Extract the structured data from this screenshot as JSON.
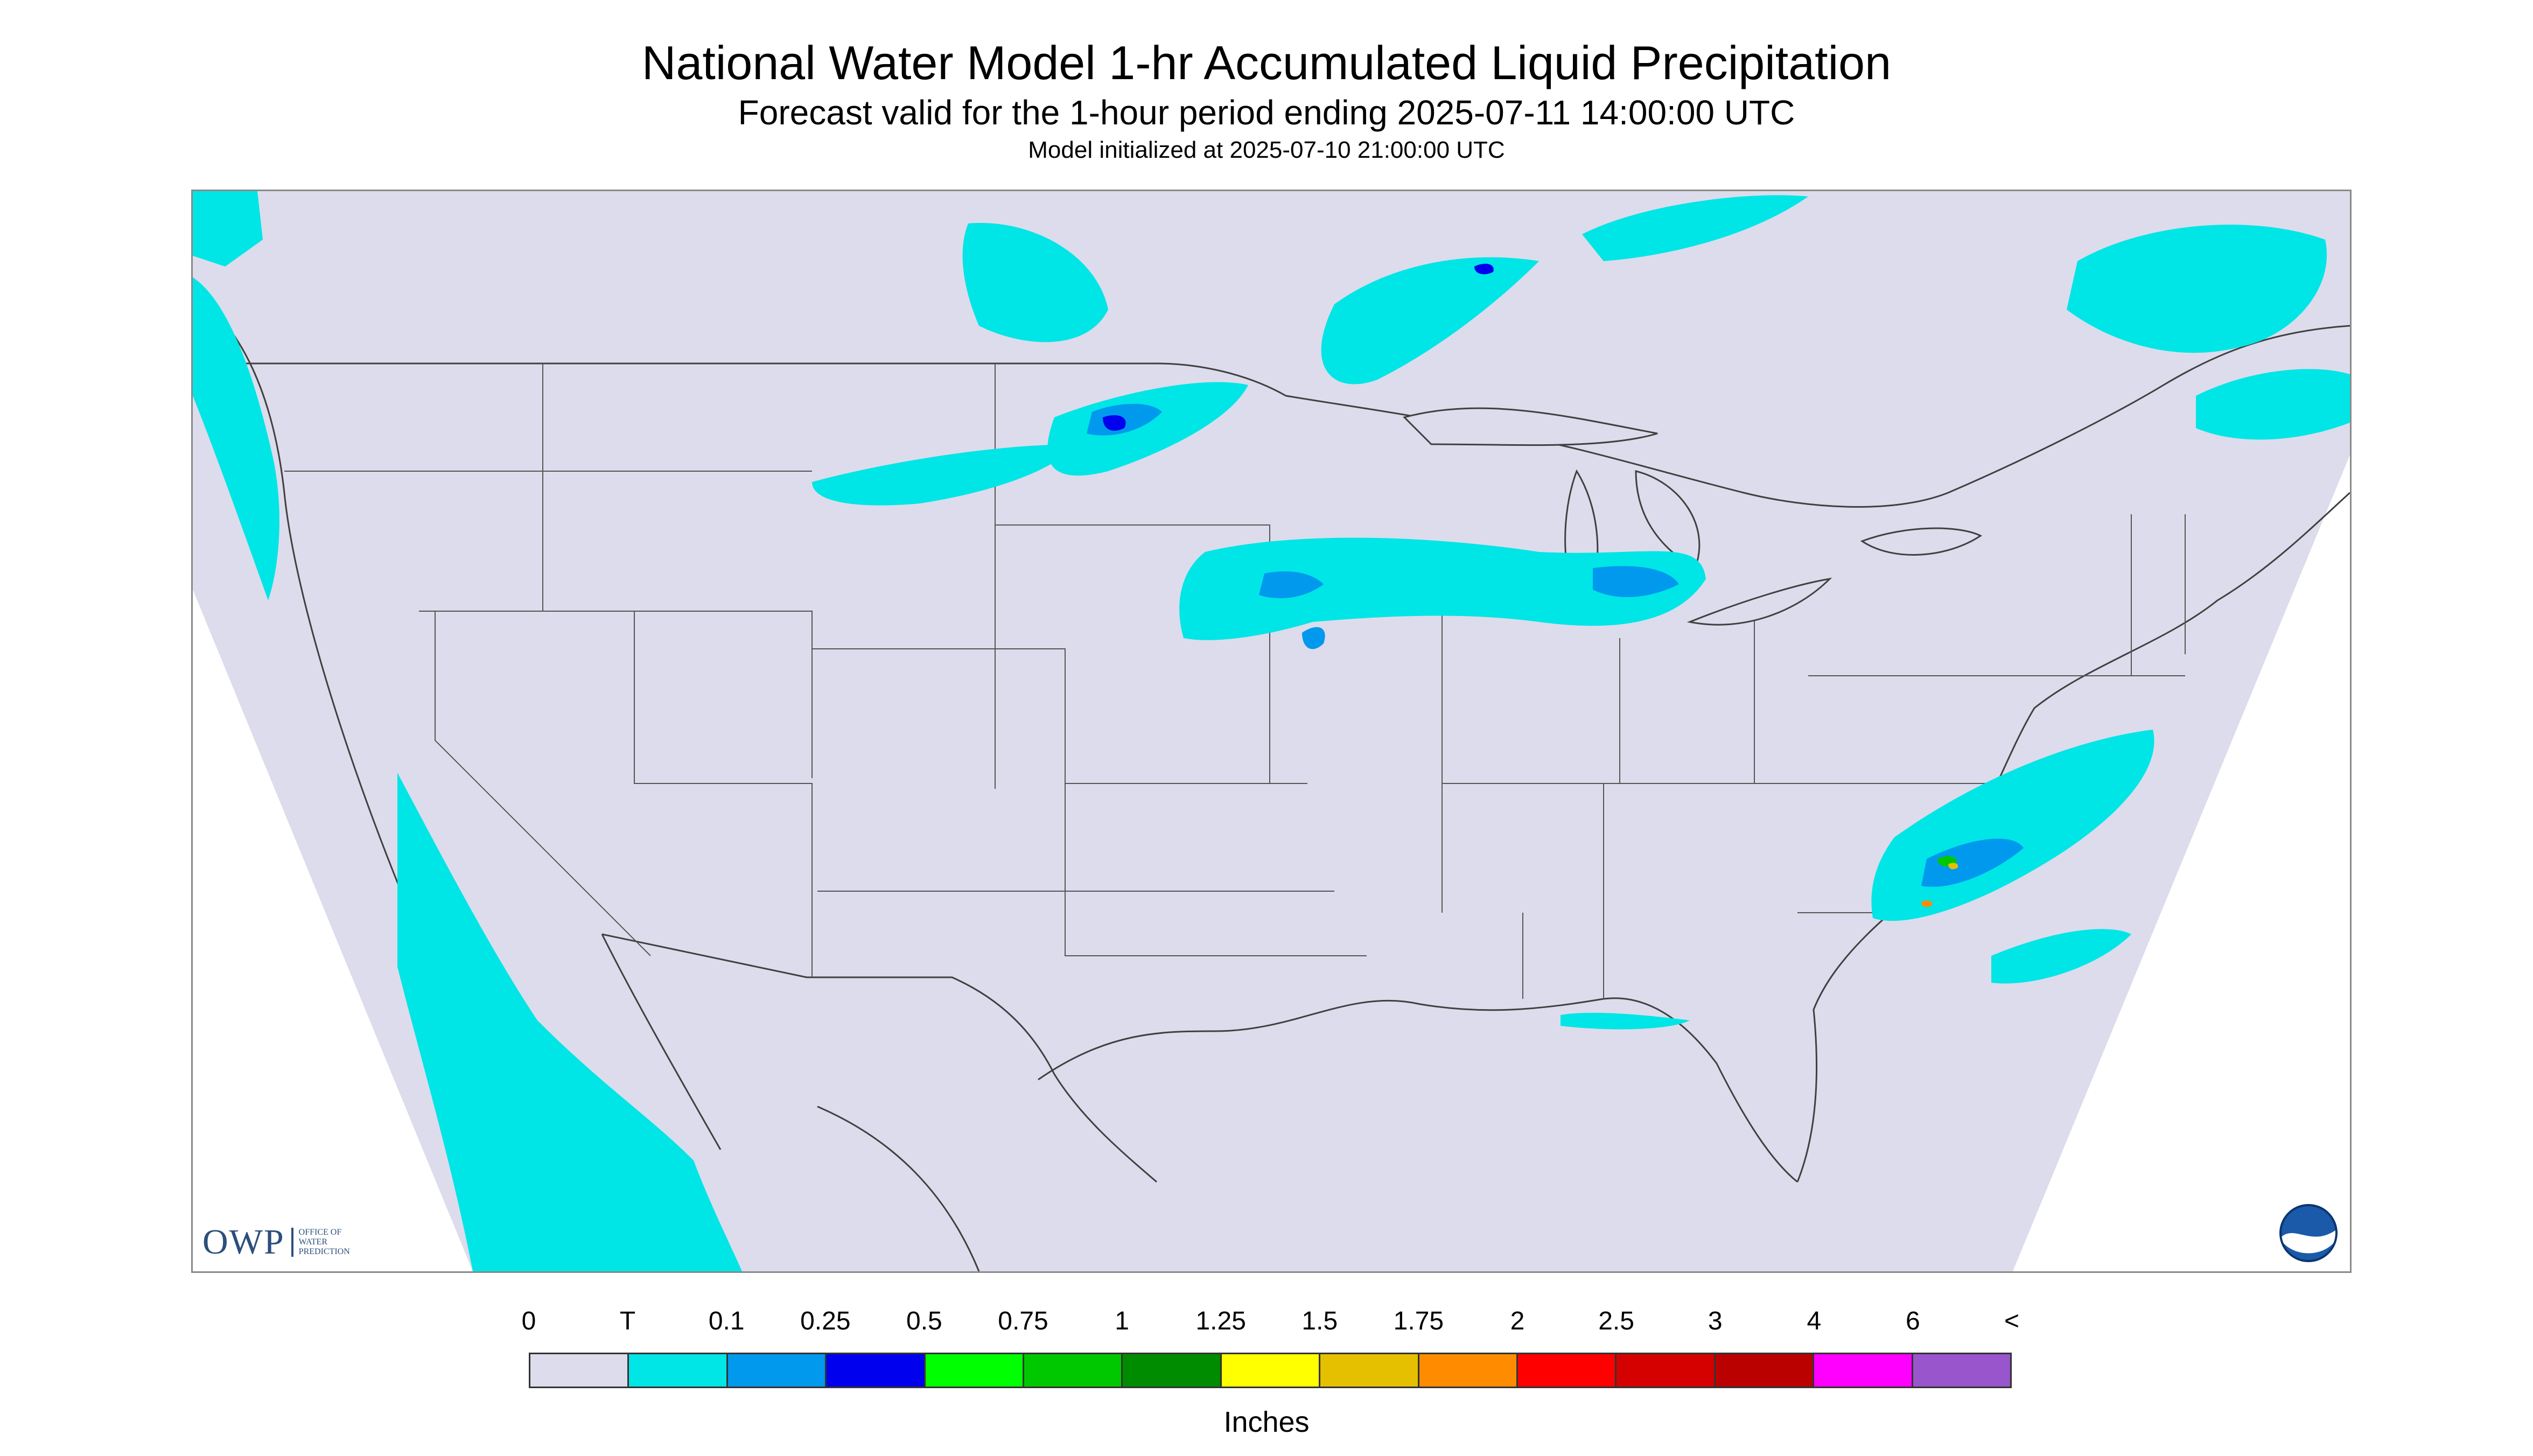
{
  "header": {
    "title": "National Water Model 1-hr Accumulated Liquid Precipitation",
    "subtitle": "Forecast valid for the 1-hour period ending 2025-07-11 14:00:00 UTC",
    "init_line": "Model initialized at 2025-07-10 21:00:00 UTC"
  },
  "map": {
    "background_color": "#dcdcec",
    "outside_domain_color": "#ffffff",
    "boundary_color": "#404040",
    "logos": {
      "owp_mark": "OWP",
      "owp_text": "OFFICE OF WATER PREDICTION",
      "noaa_icon": "noaa-logo"
    }
  },
  "legend": {
    "tick_labels": [
      "0",
      "T",
      "0.1",
      "0.25",
      "0.5",
      "0.75",
      "1",
      "1.25",
      "1.5",
      "1.75",
      "2",
      "2.5",
      "3",
      "4",
      "6",
      "<"
    ],
    "colors": [
      "#dcdcec",
      "#00e5e5",
      "#0099ee",
      "#0000ee",
      "#00ff00",
      "#00c800",
      "#008c00",
      "#ffff00",
      "#e5c000",
      "#ff8c00",
      "#ff0000",
      "#d50000",
      "#bb0000",
      "#ff00ff",
      "#9955cc"
    ],
    "units": "Inches"
  }
}
